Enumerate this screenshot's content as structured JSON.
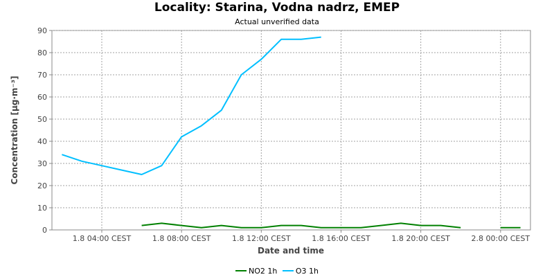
{
  "chart_data": {
    "type": "line",
    "title": "Locality: Starina, Vodna nadrz, EMEP",
    "subtitle": "Actual unverified data",
    "xlabel": "Date and time",
    "ylabel": "Concentration [µg·m⁻³]",
    "ylim": [
      0,
      90
    ],
    "yticks": [
      0,
      10,
      20,
      30,
      40,
      50,
      60,
      70,
      80,
      90
    ],
    "xlim": [
      "1.8 01:30",
      "2.8 01:30"
    ],
    "xticks": [
      "1.8 04:00 CEST",
      "1.8 08:00 CEST",
      "1.8 12:00 CEST",
      "1.8 16:00 CEST",
      "1.8 20:00 CEST",
      "2.8 00:00 CEST"
    ],
    "xtick_times": [
      "1.8 04:00",
      "1.8 08:00",
      "1.8 12:00",
      "1.8 16:00",
      "1.8 20:00",
      "2.8 00:00"
    ],
    "grid": true,
    "legend_position": "bottom",
    "series": [
      {
        "name": "NO2 1h",
        "color": "#008000",
        "points": [
          {
            "x": "1.8 06:00",
            "y": 2
          },
          {
            "x": "1.8 07:00",
            "y": 3
          },
          {
            "x": "1.8 08:00",
            "y": 2
          },
          {
            "x": "1.8 09:00",
            "y": 1
          },
          {
            "x": "1.8 10:00",
            "y": 2
          },
          {
            "x": "1.8 11:00",
            "y": 1
          },
          {
            "x": "1.8 12:00",
            "y": 1
          },
          {
            "x": "1.8 13:00",
            "y": 2
          },
          {
            "x": "1.8 14:00",
            "y": 2
          },
          {
            "x": "1.8 15:00",
            "y": 1
          },
          {
            "x": "1.8 16:00",
            "y": 1
          },
          {
            "x": "1.8 17:00",
            "y": 1
          },
          {
            "x": "1.8 18:00",
            "y": 2
          },
          {
            "x": "1.8 19:00",
            "y": 3
          },
          {
            "x": "1.8 20:00",
            "y": 2
          },
          {
            "x": "1.8 21:00",
            "y": 2
          },
          {
            "x": "1.8 22:00",
            "y": 1
          },
          {
            "x": "2.8 00:00",
            "y": 1
          },
          {
            "x": "2.8 01:00",
            "y": 1
          }
        ]
      },
      {
        "name": "O3 1h",
        "color": "#00BFFF",
        "points": [
          {
            "x": "1.8 02:00",
            "y": 34
          },
          {
            "x": "1.8 03:00",
            "y": 31
          },
          {
            "x": "1.8 04:00",
            "y": 29
          },
          {
            "x": "1.8 05:00",
            "y": 27
          },
          {
            "x": "1.8 06:00",
            "y": 25
          },
          {
            "x": "1.8 07:00",
            "y": 29
          },
          {
            "x": "1.8 08:00",
            "y": 42
          },
          {
            "x": "1.8 09:00",
            "y": 47
          },
          {
            "x": "1.8 10:00",
            "y": 54
          },
          {
            "x": "1.8 11:00",
            "y": 70
          },
          {
            "x": "1.8 12:00",
            "y": 77
          },
          {
            "x": "1.8 13:00",
            "y": 86
          },
          {
            "x": "1.8 14:00",
            "y": 86
          },
          {
            "x": "1.8 15:00",
            "y": 87
          }
        ]
      }
    ]
  }
}
